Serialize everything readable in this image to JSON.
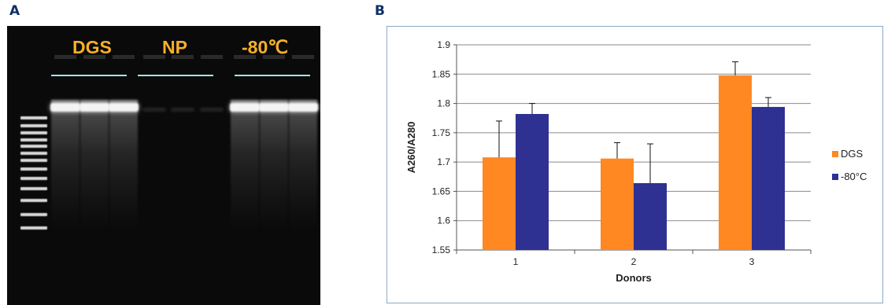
{
  "panel_a": {
    "letter": "A",
    "group_labels": [
      "DGS",
      "NP",
      "-80℃"
    ]
  },
  "panel_b": {
    "letter": "B"
  },
  "chart_data": {
    "type": "bar",
    "categories": [
      "1",
      "2",
      "3"
    ],
    "series": [
      {
        "name": "DGS",
        "values": [
          1.708,
          1.706,
          1.848
        ],
        "errors": [
          0.062,
          0.027,
          0.023
        ],
        "color": "#ff8822"
      },
      {
        "name": "-80°C",
        "values": [
          1.782,
          1.664,
          1.794
        ],
        "errors": [
          0.018,
          0.067,
          0.016
        ],
        "color": "#2e3192"
      }
    ],
    "title": "",
    "xlabel": "Donors",
    "ylabel": "A260/A280",
    "ylim": [
      1.55,
      1.9
    ],
    "yticks": [
      "1.55",
      "1.6",
      "1.65",
      "1.7",
      "1.75",
      "1.8",
      "1.85",
      "1.9"
    ],
    "grid": "horizontal",
    "legend": "right"
  }
}
